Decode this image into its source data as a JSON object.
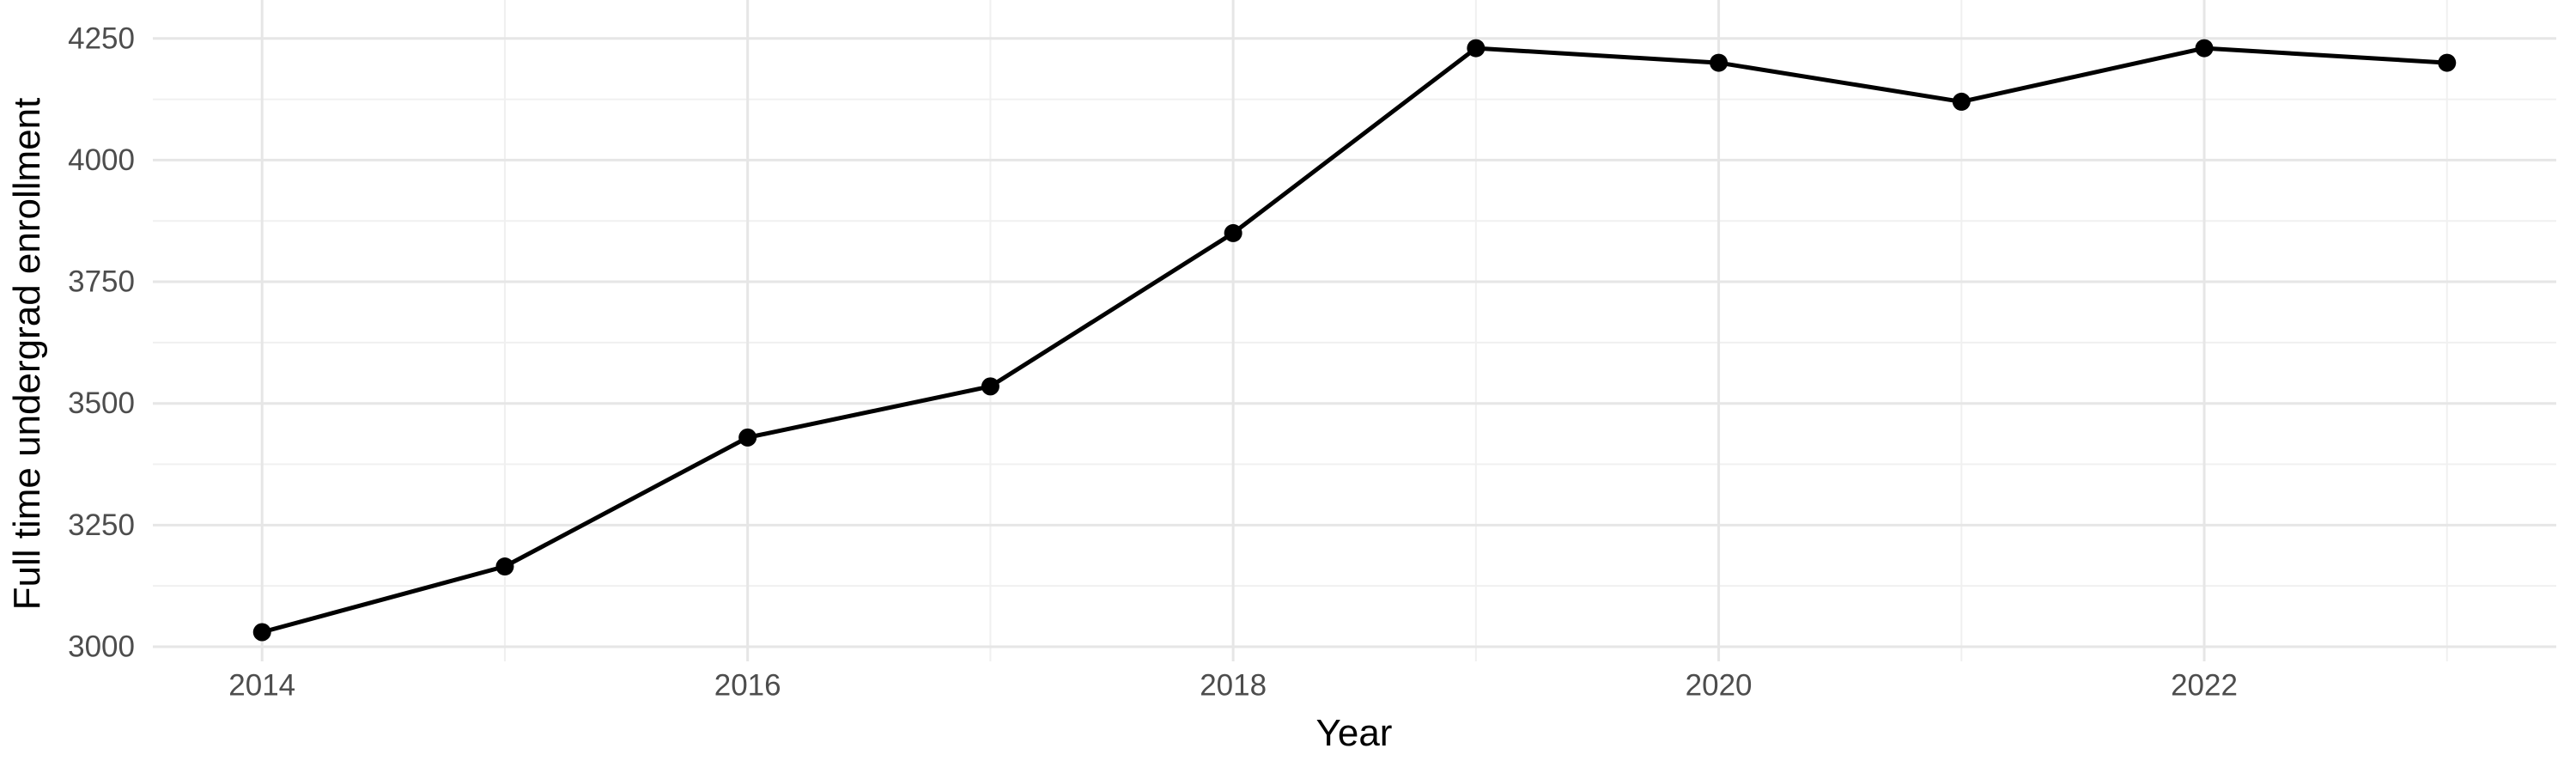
{
  "chart_data": {
    "type": "line",
    "title": "",
    "xlabel": "Year",
    "ylabel": "Full time undergrad enrollment",
    "x": [
      2014,
      2015,
      2016,
      2017,
      2018,
      2019,
      2020,
      2021,
      2022,
      2023
    ],
    "values": [
      3030,
      3165,
      3430,
      3535,
      3850,
      4230,
      4200,
      4120,
      4230,
      4200
    ],
    "series_name": "Full time undergrad enrollment",
    "x_tick_labels": [
      2014,
      2016,
      2018,
      2020,
      2022
    ],
    "x_minor_ticks": [
      2015,
      2017,
      2019,
      2021,
      2023
    ],
    "y_tick_labels": [
      3000,
      3250,
      3500,
      3750,
      4000,
      4250
    ],
    "y_minor_ticks": [
      3125,
      3375,
      3625,
      3875,
      4125
    ],
    "xlim": [
      2013.55,
      2023.45
    ],
    "ylim": [
      2970,
      4329
    ],
    "grid": true,
    "legend_position": "none",
    "colors": {
      "line": "#000000",
      "point": "#000000",
      "grid_major": "#e6e6e6",
      "grid_minor": "#f0f0f0",
      "tick_label": "#4d4d4d",
      "axis_title": "#000000",
      "background": "#ffffff"
    }
  }
}
